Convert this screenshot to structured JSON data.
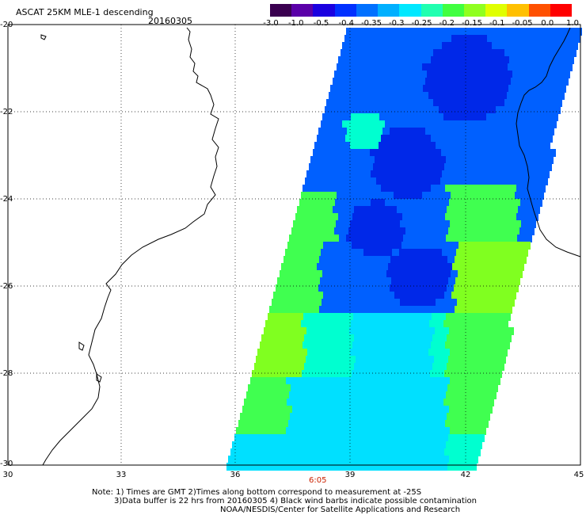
{
  "header": {
    "title": "ASCAT 25KM MLE-1 descending",
    "date": "20160305"
  },
  "colorbar": {
    "labels": [
      "-3.0",
      "-1.0",
      "-0.5",
      "-0.4",
      "-0.35",
      "-0.3",
      "-0.25",
      "-0.2",
      "-0.15",
      "-0.1",
      "-0.05",
      "0.0",
      "1.0"
    ],
    "colors": [
      "#3a0050",
      "#5a00a8",
      "#1a00e0",
      "#0030ff",
      "#0070ff",
      "#00b0ff",
      "#00e8ff",
      "#20ffb0",
      "#40ff40",
      "#90ff20",
      "#e0ff00",
      "#ffc000",
      "#ff5000",
      "#ff0000"
    ]
  },
  "axes": {
    "lat_labels": [
      "-20",
      "-22",
      "-24",
      "-26",
      "-28",
      "-30"
    ],
    "lon_labels": [
      "30",
      "33",
      "36",
      "39",
      "42",
      "45"
    ]
  },
  "time_marker": "6:05",
  "notes": {
    "line1": "Note: 1) Times are GMT 2)Times along bottom correspond to measurement at -25S",
    "line2": "3)Data buffer is 22 hrs from 20160305 4) Black wind barbs indicate possible contamination",
    "line3": "NOAA/NESDIS/Center for Satellite Applications and Research"
  },
  "swath_colors": {
    "deep_blue": "#0028e8",
    "blue": "#0060ff",
    "light_blue": "#0098ff",
    "cyan": "#00e0ff",
    "aqua": "#00ffd0",
    "green": "#40ff50",
    "bright_green": "#80ff20",
    "yellow_green": "#c8ff00",
    "yellow": "#ffff00"
  }
}
